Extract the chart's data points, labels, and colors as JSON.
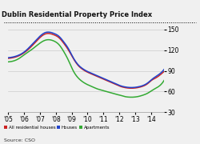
{
  "title": "Dublin Residential Property Price Index",
  "colors": {
    "all_residential": "#cc2222",
    "houses": "#2244cc",
    "apartments": "#33aa33"
  },
  "ylim": [
    30,
    155
  ],
  "yticks": [
    30,
    60,
    90,
    120,
    150
  ],
  "xlim": [
    2005.0,
    2014.8
  ],
  "xtick_positions": [
    2005,
    2006,
    2007,
    2008,
    2009,
    2010,
    2011,
    2012,
    2013,
    2014
  ],
  "xtick_labels": [
    "'05",
    "'06",
    "'07",
    "'08",
    "'09",
    "'10",
    "'11",
    "'12",
    "'13",
    "'14"
  ],
  "legend_labels": [
    "All residential houses",
    "Houses",
    "Apartments"
  ],
  "source": "Source: CSO",
  "background_color": "#f0f0f0",
  "x_ctrl": [
    2005.0,
    2005.3,
    2005.7,
    2006.0,
    2006.5,
    2007.0,
    2007.3,
    2007.6,
    2007.9,
    2008.2,
    2008.5,
    2008.8,
    2009.1,
    2009.4,
    2009.7,
    2010.0,
    2010.3,
    2010.6,
    2010.9,
    2011.2,
    2011.5,
    2011.8,
    2012.0,
    2012.3,
    2012.6,
    2012.9,
    2013.2,
    2013.5,
    2013.8,
    2014.0,
    2014.3,
    2014.6,
    2014.8
  ],
  "all_res_ctrl": [
    108,
    109,
    112,
    116,
    126,
    138,
    143,
    144,
    142,
    138,
    130,
    120,
    108,
    98,
    92,
    88,
    85,
    82,
    79,
    76,
    73,
    70,
    68,
    66,
    65,
    65,
    66,
    68,
    72,
    76,
    80,
    85,
    89
  ],
  "houses_ctrl": [
    109,
    110,
    113,
    117,
    128,
    140,
    145,
    146,
    144,
    140,
    132,
    122,
    109,
    99,
    93,
    89,
    86,
    83,
    80,
    77,
    74,
    71,
    69,
    67,
    66,
    66,
    67,
    69,
    73,
    77,
    82,
    87,
    92
  ],
  "apts_ctrl": [
    103,
    104,
    108,
    113,
    121,
    130,
    134,
    135,
    133,
    128,
    118,
    105,
    90,
    80,
    74,
    70,
    67,
    64,
    62,
    60,
    58,
    56,
    55,
    53,
    52,
    52,
    53,
    55,
    58,
    61,
    65,
    70,
    76
  ]
}
